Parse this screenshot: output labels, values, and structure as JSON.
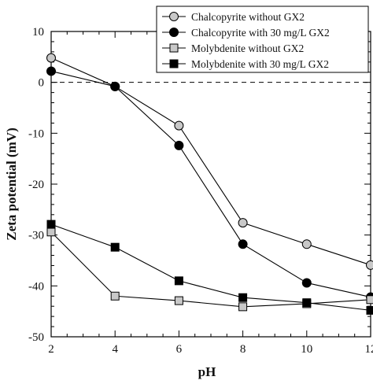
{
  "chart_data": {
    "type": "line",
    "xlabel": "pH",
    "ylabel": "Zeta potential (mV)",
    "xlim": [
      2,
      12
    ],
    "ylim": [
      -50,
      10
    ],
    "xticks": [
      2,
      4,
      6,
      8,
      10,
      12
    ],
    "yticks": [
      10,
      0,
      -10,
      -20,
      -30,
      -40,
      -50
    ],
    "zero_reference_line": "dashed",
    "grid": false,
    "legend_position": "top-right",
    "x": [
      2,
      4,
      6,
      8,
      10,
      12
    ],
    "series": [
      {
        "name": "Chalcopyrite without GX2",
        "marker": "circle",
        "fill": "#c8c8c8",
        "values": [
          4.8,
          -0.8,
          -8.5,
          -27.6,
          -31.8,
          -35.9
        ]
      },
      {
        "name": "Chalcopyrite with 30 mg/L GX2",
        "marker": "circle",
        "fill": "#000000",
        "values": [
          2.2,
          -0.8,
          -12.4,
          -31.8,
          -39.4,
          -42.2
        ]
      },
      {
        "name": "Molybdenite without GX2",
        "marker": "square",
        "fill": "#c8c8c8",
        "values": [
          -29.4,
          -42.0,
          -42.9,
          -44.1,
          -43.5,
          -42.7
        ]
      },
      {
        "name": "Molybdenite with 30 mg/L GX2",
        "marker": "square",
        "fill": "#000000",
        "values": [
          -27.9,
          -32.4,
          -39.0,
          -42.3,
          -43.3,
          -44.8
        ]
      }
    ]
  }
}
